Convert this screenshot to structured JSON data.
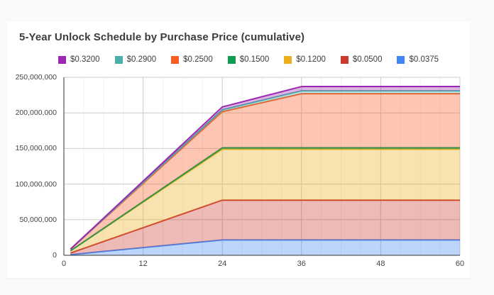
{
  "title": "5-Year Unlock Schedule by Purchase Price (cumulative)",
  "colors": {
    "page_bg": "#fafafa",
    "card_bg": "#ffffff",
    "title_text": "#3c3c3c",
    "axis_text": "#444444",
    "legend_text": "#3c3c3c",
    "grid_minor": "#f2f2f2",
    "grid_major": "#cccccc",
    "axis_line": "#333333"
  },
  "legend": {
    "position": "top",
    "items": [
      {
        "label": "$0.3200",
        "color": "#9C27B0"
      },
      {
        "label": "$0.2900",
        "color": "#4BB0A9"
      },
      {
        "label": "$0.2500",
        "color": "#F95D24"
      },
      {
        "label": "$0.1500",
        "color": "#0F9D52"
      },
      {
        "label": "$0.1200",
        "color": "#EBAE1D"
      },
      {
        "label": "$0.0500",
        "color": "#CA3A2F"
      },
      {
        "label": "$0.0375",
        "color": "#4285F4"
      }
    ]
  },
  "x_axis": {
    "tick_labels": [
      "0",
      "12",
      "24",
      "36",
      "48",
      "60"
    ],
    "tick_values": [
      0,
      12,
      24,
      36,
      48,
      60
    ]
  },
  "y_axis": {
    "tick_labels": [
      "0",
      "50,000,000",
      "100,000,000",
      "150,000,000",
      "200,000,000",
      "250,000,000"
    ],
    "tick_values": [
      0,
      50000000,
      100000000,
      150000000,
      200000000,
      250000000
    ]
  },
  "chart_data": {
    "type": "area",
    "stacked": true,
    "cumulative": true,
    "title": "5-Year Unlock Schedule by Purchase Price (cumulative)",
    "xlabel": "",
    "ylabel": "",
    "x_unit": "months",
    "xlim": [
      0,
      60
    ],
    "ylim": [
      0,
      250000000
    ],
    "legend_position": "top",
    "grid": {
      "x_minor_step_months": 3,
      "x_major_step_months": 12,
      "y_step": 50000000
    },
    "first_plotted_month": 1,
    "x_breakpoints": [
      1,
      24,
      36,
      60
    ],
    "series_bottom_to_top": [
      {
        "name": "$0.0375",
        "color": "#4285F4",
        "total_tokens": 21500000,
        "full_vest_month": 24,
        "values_at_breakpoints": [
          900000,
          21500000,
          21500000,
          21500000
        ]
      },
      {
        "name": "$0.0500",
        "color": "#CA3A2F",
        "total_tokens": 56000000,
        "full_vest_month": 24,
        "values_at_breakpoints": [
          2333000,
          56000000,
          56000000,
          56000000
        ]
      },
      {
        "name": "$0.1200",
        "color": "#EBAE1D",
        "total_tokens": 71500000,
        "full_vest_month": 24,
        "values_at_breakpoints": [
          2979000,
          71500000,
          71500000,
          71500000
        ]
      },
      {
        "name": "$0.1500",
        "color": "#0F9D52",
        "total_tokens": 2000000,
        "full_vest_month": 24,
        "values_at_breakpoints": [
          83000,
          2000000,
          2000000,
          2000000
        ]
      },
      {
        "name": "$0.2500",
        "color": "#F95D24",
        "total_tokens": 76000000,
        "full_vest_month": 36,
        "values_at_breakpoints": [
          2111000,
          50667000,
          76000000,
          76000000
        ]
      },
      {
        "name": "$0.2900",
        "color": "#4BB0A9",
        "total_tokens": 4000000,
        "full_vest_month": 36,
        "values_at_breakpoints": [
          111000,
          2667000,
          4000000,
          4000000
        ]
      },
      {
        "name": "$0.3200",
        "color": "#9C27B0",
        "total_tokens": 6000000,
        "full_vest_month": 36,
        "values_at_breakpoints": [
          167000,
          4000000,
          6000000,
          6000000
        ]
      }
    ],
    "stack_order_note": "bottom to top: $0.0375, $0.0500, $0.1200, $0.1500, $0.2500, $0.2900, $0.3200",
    "approx_total_at_month_60": 237500000
  }
}
